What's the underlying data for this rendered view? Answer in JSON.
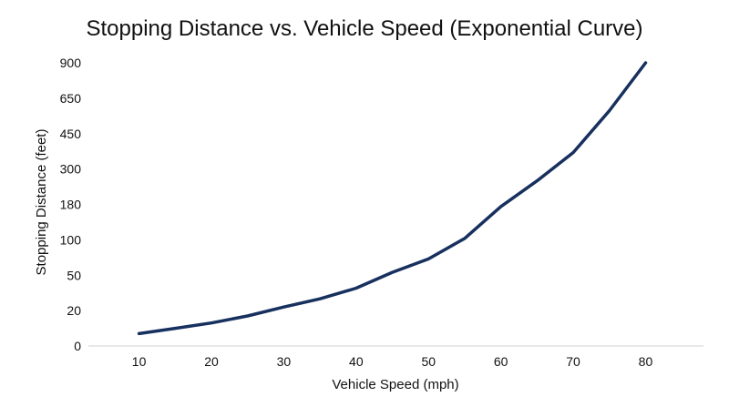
{
  "chart_data": {
    "type": "line",
    "title": "Stopping Distance vs. Vehicle Speed (Exponential Curve)",
    "xlabel": "Vehicle Speed (mph)",
    "ylabel": "Stopping Distance (feet)",
    "x": [
      10,
      15,
      20,
      25,
      30,
      35,
      40,
      45,
      50,
      55,
      60,
      65,
      70,
      75,
      80
    ],
    "x_ticks": [
      10,
      20,
      30,
      40,
      50,
      60,
      70,
      80
    ],
    "y_ticks": [
      0,
      20,
      50,
      100,
      180,
      300,
      450,
      650,
      900
    ],
    "series": [
      {
        "values": [
          7,
          10,
          13,
          17,
          23,
          30,
          39,
          54,
          73,
          103,
          175,
          260,
          370,
          580,
          900
        ],
        "color": "#17305e"
      }
    ],
    "xlim": [
      3,
      88
    ],
    "y_scale": "nonlinear (tick positions evenly spaced)",
    "grid": false,
    "legend": "none"
  }
}
